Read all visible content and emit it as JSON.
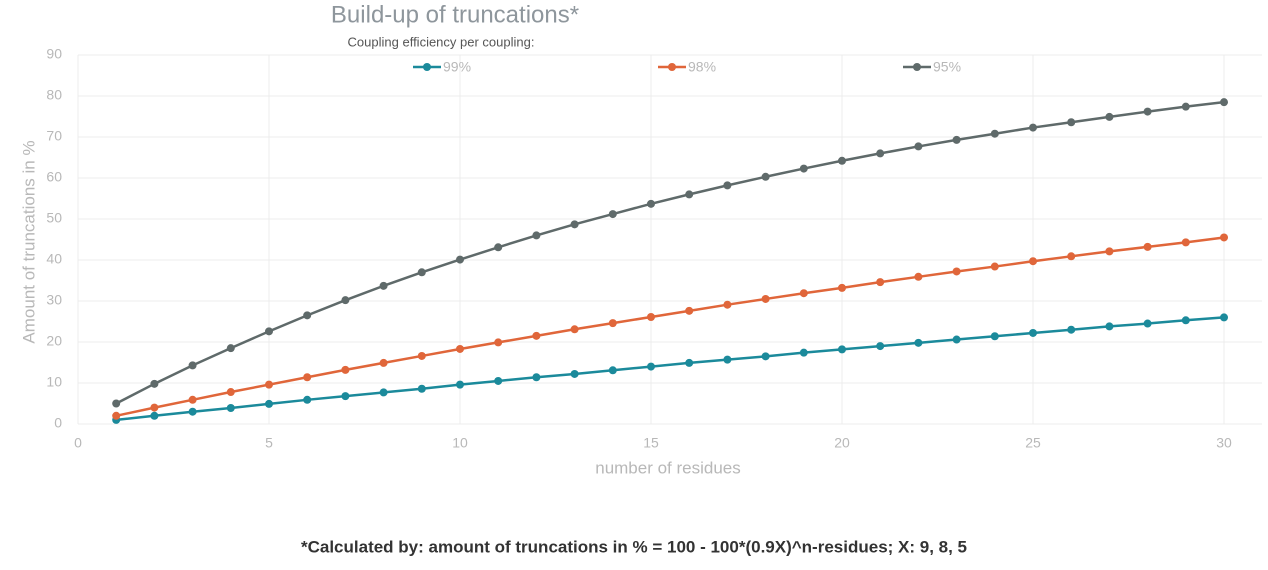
{
  "chart_data": {
    "type": "line",
    "title": "Build-up of truncations*",
    "legend_title": "Coupling efficiency per coupling:",
    "x_label": "number of residues",
    "y_label": "Amount of truncations in %",
    "note": "*Calculated by: amount of truncations in % = 100 - 100*(0.9X)^n-residues; X: 9, 8, 5",
    "x": [
      1,
      2,
      3,
      4,
      5,
      6,
      7,
      8,
      9,
      10,
      11,
      12,
      13,
      14,
      15,
      16,
      17,
      18,
      19,
      20,
      21,
      22,
      23,
      24,
      25,
      26,
      27,
      28,
      29,
      30
    ],
    "series": [
      {
        "name": "99%",
        "color": "#1b8a9b",
        "values": [
          1.0,
          2.0,
          3.0,
          3.9,
          4.9,
          5.9,
          6.8,
          7.7,
          8.6,
          9.6,
          10.5,
          11.4,
          12.2,
          13.1,
          14.0,
          14.9,
          15.7,
          16.5,
          17.4,
          18.2,
          19.0,
          19.8,
          20.6,
          21.4,
          22.2,
          23.0,
          23.8,
          24.5,
          25.3,
          26.0
        ]
      },
      {
        "name": "98%",
        "color": "#e0663a",
        "values": [
          2.0,
          4.0,
          5.9,
          7.8,
          9.6,
          11.4,
          13.2,
          14.9,
          16.6,
          18.3,
          19.9,
          21.5,
          23.1,
          24.6,
          26.1,
          27.6,
          29.1,
          30.5,
          31.9,
          33.2,
          34.6,
          35.9,
          37.2,
          38.4,
          39.7,
          40.9,
          42.1,
          43.2,
          44.3,
          45.5
        ]
      },
      {
        "name": "95%",
        "color": "#5f6a6a",
        "values": [
          5.0,
          9.8,
          14.3,
          18.5,
          22.6,
          26.5,
          30.2,
          33.7,
          37.0,
          40.1,
          43.1,
          46.0,
          48.7,
          51.2,
          53.7,
          56.0,
          58.2,
          60.3,
          62.3,
          64.2,
          66.0,
          67.7,
          69.3,
          70.8,
          72.3,
          73.6,
          74.9,
          76.2,
          77.4,
          78.5
        ]
      }
    ],
    "xlim": [
      0,
      30
    ],
    "xticks": [
      0,
      5,
      10,
      15,
      20,
      25,
      30
    ],
    "ylim": [
      0,
      90
    ],
    "yticks": [
      0,
      10,
      20,
      30,
      40,
      50,
      60,
      70,
      80,
      90
    ],
    "grid": true
  }
}
